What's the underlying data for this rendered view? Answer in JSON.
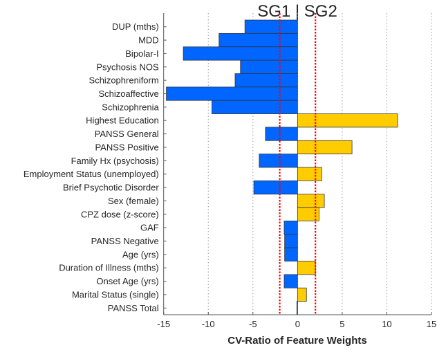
{
  "chart_data": {
    "type": "bar",
    "orientation": "horizontal",
    "title": "SG1 | SG2",
    "xlabel": "CV-Ratio of Feature Weights",
    "ylabel": "",
    "xlim": [
      -15,
      15
    ],
    "xticks": [
      -15,
      -10,
      -5,
      0,
      5,
      10,
      15
    ],
    "grid": "vertical-dotted",
    "thresholds": [
      -2,
      2
    ],
    "colors": {
      "negative": "#0066ff",
      "positive": "#ffcc00",
      "threshold": "#ff0000",
      "edge": "#333333"
    },
    "categories": [
      "DUP (mths)",
      "MDD",
      "Bipolar-I",
      "Psychosis NOS",
      "Schizophreniform",
      "Schizoaffective",
      "Schizophrenia",
      "Highest Education",
      "PANSS General",
      "PANSS Positive",
      "Family Hx (psychosis)",
      "Employment Status (unemployed)",
      "Brief Psychotic Disorder",
      "Sex (female)",
      "CPZ dose (z-score)",
      "GAF",
      "PANSS Negative",
      "Age (yrs)",
      "Duration of Illness (mths)",
      "Onset Age (yrs)",
      "Marital Status (single)",
      "PANSS Total"
    ],
    "values": [
      -5.9,
      -8.8,
      -12.8,
      -6.4,
      -7.0,
      -14.7,
      -9.6,
      11.2,
      -3.6,
      6.1,
      -4.3,
      2.7,
      -4.9,
      3.0,
      2.4,
      -1.5,
      -1.45,
      -1.45,
      2.0,
      -1.5,
      1.0,
      -0.08
    ]
  }
}
